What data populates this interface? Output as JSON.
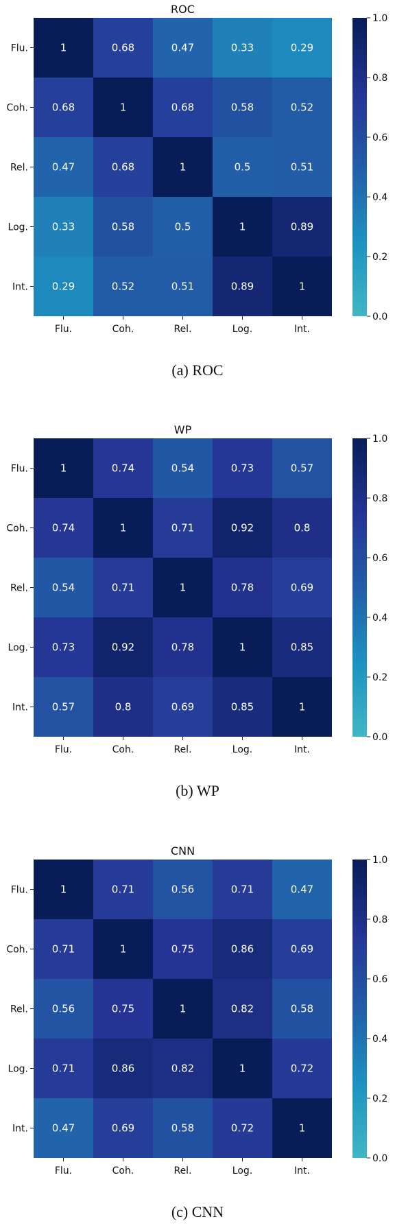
{
  "chart_data": [
    {
      "type": "heatmap",
      "title": "ROC",
      "caption": "(a) ROC",
      "x_labels": [
        "Flu.",
        "Coh.",
        "Rel.",
        "Log.",
        "Int."
      ],
      "y_labels": [
        "Flu.",
        "Coh.",
        "Rel.",
        "Log.",
        "Int."
      ],
      "values": [
        [
          1,
          0.68,
          0.47,
          0.33,
          0.29
        ],
        [
          0.68,
          1,
          0.68,
          0.58,
          0.52
        ],
        [
          0.47,
          0.68,
          1,
          0.5,
          0.51
        ],
        [
          0.33,
          0.58,
          0.5,
          1,
          0.89
        ],
        [
          0.29,
          0.52,
          0.51,
          0.89,
          1
        ]
      ],
      "colorbar": {
        "range": [
          0.0,
          1.0
        ],
        "ticks": [
          "0.0",
          "0.2",
          "0.4",
          "0.6",
          "0.8",
          "1.0"
        ]
      }
    },
    {
      "type": "heatmap",
      "title": "WP",
      "caption": "(b) WP",
      "x_labels": [
        "Flu.",
        "Coh.",
        "Rel.",
        "Log.",
        "Int."
      ],
      "y_labels": [
        "Flu.",
        "Coh.",
        "Rel.",
        "Log.",
        "Int."
      ],
      "values": [
        [
          1,
          0.74,
          0.54,
          0.73,
          0.57
        ],
        [
          0.74,
          1,
          0.71,
          0.92,
          0.8
        ],
        [
          0.54,
          0.71,
          1,
          0.78,
          0.69
        ],
        [
          0.73,
          0.92,
          0.78,
          1,
          0.85
        ],
        [
          0.57,
          0.8,
          0.69,
          0.85,
          1
        ]
      ],
      "colorbar": {
        "range": [
          0.0,
          1.0
        ],
        "ticks": [
          "0.0",
          "0.2",
          "0.4",
          "0.6",
          "0.8",
          "1.0"
        ]
      }
    },
    {
      "type": "heatmap",
      "title": "CNN",
      "caption": "(c) CNN",
      "x_labels": [
        "Flu.",
        "Coh.",
        "Rel.",
        "Log.",
        "Int."
      ],
      "y_labels": [
        "Flu.",
        "Coh.",
        "Rel.",
        "Log.",
        "Int."
      ],
      "values": [
        [
          1,
          0.71,
          0.56,
          0.71,
          0.47
        ],
        [
          0.71,
          1,
          0.75,
          0.86,
          0.69
        ],
        [
          0.56,
          0.75,
          1,
          0.82,
          0.58
        ],
        [
          0.71,
          0.86,
          0.82,
          1,
          0.72
        ],
        [
          0.47,
          0.69,
          0.58,
          0.72,
          1
        ]
      ],
      "colorbar": {
        "range": [
          0.0,
          1.0
        ],
        "ticks": [
          "0.0",
          "0.2",
          "0.4",
          "0.6",
          "0.8",
          "1.0"
        ]
      }
    }
  ],
  "colormap": [
    "#41b6c4",
    "#1d91c0",
    "#225ea8",
    "#253494",
    "#081d58"
  ]
}
